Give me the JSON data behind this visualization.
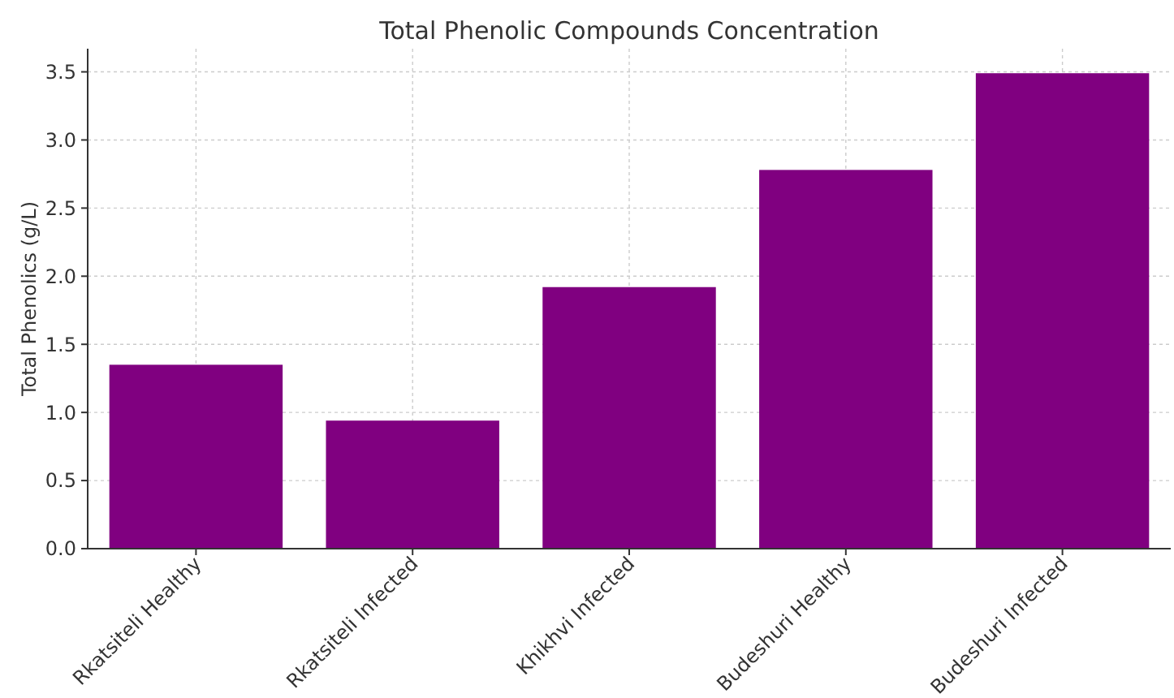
{
  "chart_data": {
    "type": "bar",
    "title": "Total Phenolic Compounds Concentration",
    "ylabel": "Total Phenolics (g/L)",
    "categories": [
      "Rkatsiteli Healthy",
      "Rkatsiteli Infected",
      "Khikhvi Infected",
      "Budeshuri Healthy",
      "Budeshuri Infected"
    ],
    "values": [
      1.35,
      0.94,
      1.92,
      2.78,
      3.49
    ],
    "color": "#800080",
    "ylim": [
      0,
      3.67
    ],
    "yticks": [
      {
        "value": 0,
        "label": "0.0"
      },
      {
        "value": 0.5,
        "label": "0.5"
      },
      {
        "value": 1,
        "label": "1.0"
      },
      {
        "value": 1.5,
        "label": "1.5"
      },
      {
        "value": 2,
        "label": "2.0"
      },
      {
        "value": 2.5,
        "label": "2.5"
      },
      {
        "value": 3,
        "label": "3.0"
      },
      {
        "value": 3.5,
        "label": "3.5"
      }
    ],
    "grid": true
  }
}
